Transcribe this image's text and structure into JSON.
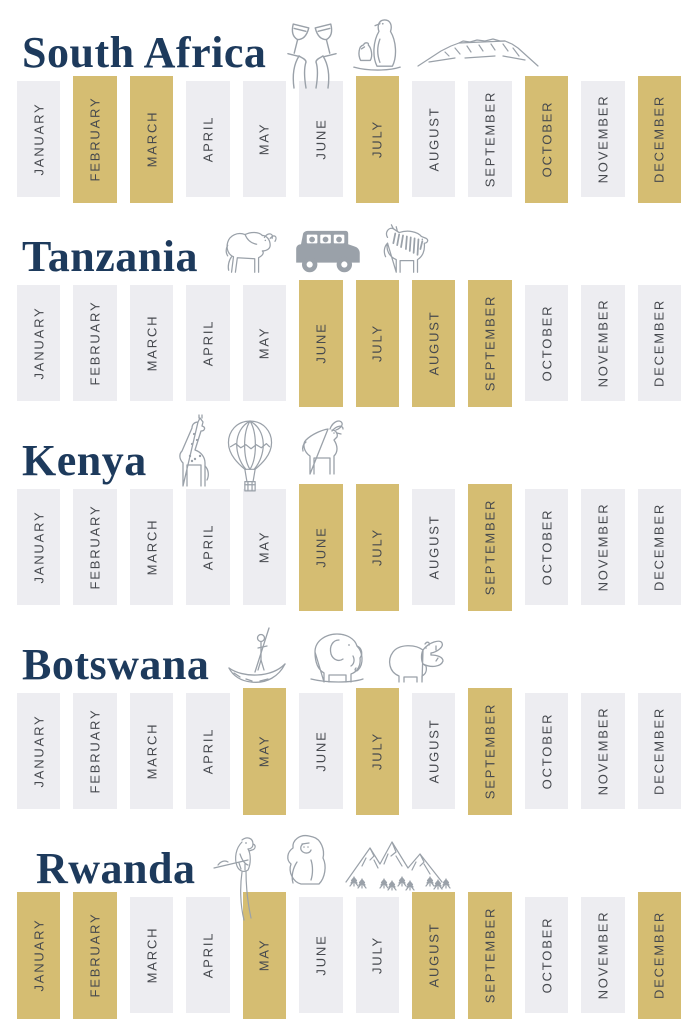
{
  "colors": {
    "highlight": "#D5BD72",
    "inactive": "#EDEDF1",
    "title": "#1D3A5C",
    "label": "#46494E",
    "icon": "#9AA1A9"
  },
  "sections": [
    {
      "title": "South Africa",
      "icons": [
        "wine-toast-icon",
        "penguins-icon",
        "table-mountain-icon"
      ]
    },
    {
      "title": "Tanzania",
      "icons": [
        "wildebeest-icon",
        "safari-jeep-icon",
        "zebra-icon"
      ]
    },
    {
      "title": "Kenya",
      "icons": [
        "giraffe-icon",
        "hot-air-balloon-icon",
        "antelope-icon"
      ]
    },
    {
      "title": "Botswana",
      "icons": [
        "mokoro-canoe-icon",
        "elephant-icon",
        "hippo-icon"
      ]
    },
    {
      "title": "Rwanda",
      "icons": [
        "parrot-icon",
        "gorilla-icon",
        "mountains-icon"
      ]
    }
  ],
  "chart_data": {
    "type": "heatmap",
    "categories": [
      "JANUARY",
      "FEBRUARY",
      "MARCH",
      "APRIL",
      "MAY",
      "JUNE",
      "JULY",
      "AUGUST",
      "SEPTEMBER",
      "OCTOBER",
      "NOVEMBER",
      "DECEMBER"
    ],
    "series": [
      {
        "name": "South Africa",
        "values": [
          0,
          1,
          1,
          0,
          0,
          0,
          1,
          0,
          0,
          1,
          0,
          1
        ],
        "highlighted_months": [
          "FEBRUARY",
          "MARCH",
          "JULY",
          "OCTOBER",
          "DECEMBER"
        ]
      },
      {
        "name": "Tanzania",
        "values": [
          0,
          0,
          0,
          0,
          0,
          1,
          1,
          1,
          1,
          0,
          0,
          0
        ],
        "highlighted_months": [
          "JUNE",
          "JULY",
          "AUGUST",
          "SEPTEMBER"
        ]
      },
      {
        "name": "Kenya",
        "values": [
          0,
          0,
          0,
          0,
          0,
          1,
          1,
          0,
          1,
          0,
          0,
          0
        ],
        "highlighted_months": [
          "JUNE",
          "JULY",
          "SEPTEMBER"
        ]
      },
      {
        "name": "Botswana",
        "values": [
          0,
          0,
          0,
          0,
          1,
          0,
          1,
          0,
          1,
          0,
          0,
          0
        ],
        "highlighted_months": [
          "MAY",
          "JULY",
          "SEPTEMBER"
        ]
      },
      {
        "name": "Rwanda",
        "values": [
          1,
          1,
          0,
          0,
          1,
          0,
          0,
          1,
          1,
          0,
          0,
          1
        ],
        "highlighted_months": [
          "JANUARY",
          "FEBRUARY",
          "MAY",
          "AUGUST",
          "SEPTEMBER",
          "DECEMBER"
        ]
      }
    ],
    "value_meaning": {
      "1": "gold highlighted month",
      "0": "light gray month"
    },
    "highlight_color": "#D5BD72",
    "base_color": "#EDEDF1"
  }
}
